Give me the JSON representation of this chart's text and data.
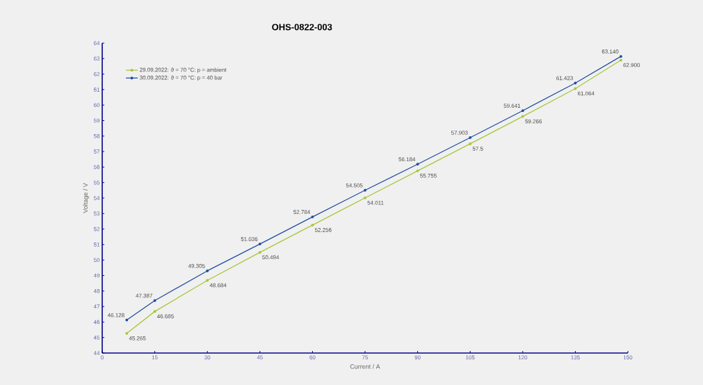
{
  "chart_data": {
    "type": "line",
    "title": "OHS-0822-003",
    "xlabel": "Current / A",
    "ylabel": "Voltage / V",
    "x": [
      7,
      15,
      30,
      45,
      60,
      75,
      90,
      105,
      120,
      135,
      148
    ],
    "series": [
      {
        "name": "29.09.2022: ϑ = 70 °C: p = ambient",
        "color": "#a8c63a",
        "values": [
          45.265,
          46.685,
          48.684,
          50.494,
          52.256,
          54.011,
          55.755,
          57.5,
          59.266,
          61.064,
          62.9
        ],
        "value_labels": [
          "45.265",
          "46.685",
          "48.684",
          "50.494",
          "52.256",
          "54.011",
          "55.755",
          "57.5",
          "59.266",
          "61.064",
          "62.900"
        ]
      },
      {
        "name": "30.09.2022: ϑ = 70 °C: p = 40 bar",
        "color": "#1f4ea0",
        "values": [
          46.128,
          47.387,
          49.305,
          51.036,
          52.784,
          54.505,
          56.184,
          57.903,
          59.641,
          61.423,
          63.14
        ],
        "value_labels": [
          "46.128",
          "47.387",
          "49.305",
          "51.036",
          "52.784",
          "54.505",
          "56.184",
          "57.903",
          "59.641",
          "61.423",
          "63.140"
        ]
      }
    ],
    "xlim": [
      0,
      150
    ],
    "ylim": [
      44,
      64
    ],
    "xticks": [
      0,
      15,
      30,
      45,
      60,
      75,
      90,
      105,
      120,
      135,
      150
    ],
    "yticks": [
      44,
      45,
      46,
      47,
      48,
      49,
      50,
      51,
      52,
      53,
      54,
      55,
      56,
      57,
      58,
      59,
      60,
      61,
      62,
      63,
      64
    ],
    "legend": "top left",
    "marker": "circle",
    "line_style": "solid",
    "grid": false
  }
}
